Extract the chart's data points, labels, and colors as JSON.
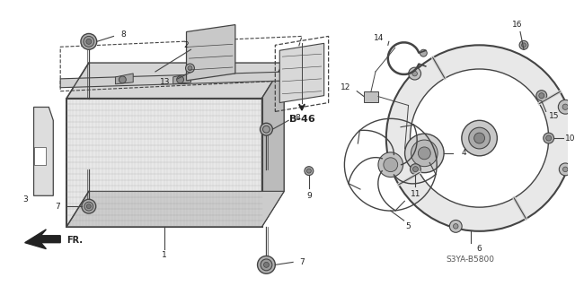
{
  "bg_color": "#ffffff",
  "line_color": "#444444",
  "dark_color": "#222222",
  "gray_color": "#888888",
  "light_gray": "#cccccc",
  "part_code": "S3YA-B5800",
  "b46_label": "B-46",
  "fr_label": "FR.",
  "label_fontsize": 6.5,
  "bold_fontsize": 7.5
}
